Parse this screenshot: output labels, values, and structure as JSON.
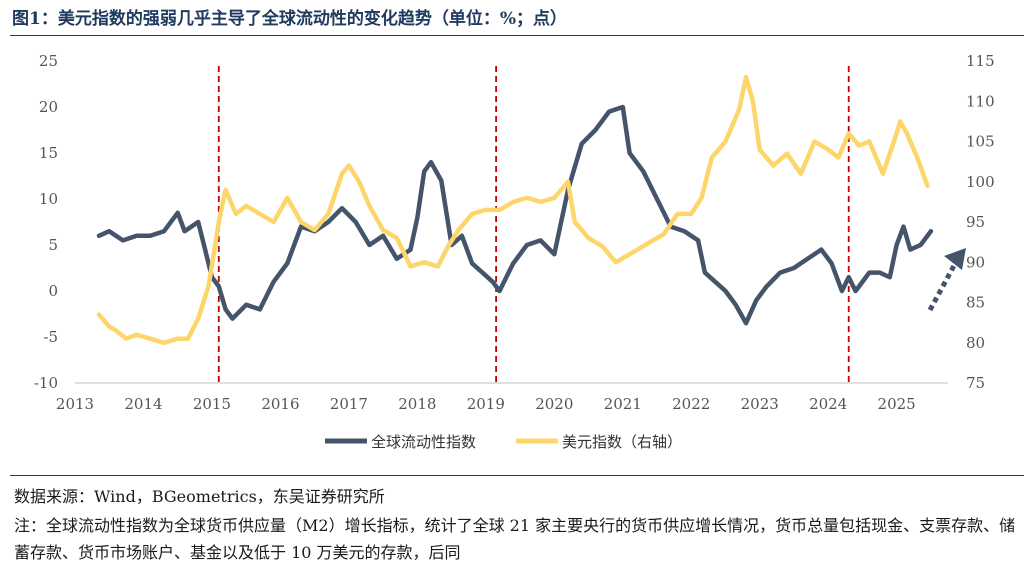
{
  "figure_title": "图1：美元指数的强弱几乎主导了全球流动性的变化趋势（单位：%；点）",
  "source": "数据来源：Wind，BGeometrics，东吴证券研究所",
  "note": "注：全球流动性指数为全球货币供应量（M2）增长指标，统计了全球 21 家主要央行的货币供应增长情况，货币总量包括现金、支票存款、储蓄存款、货币市场账户、基金以及低于 10 万美元的存款，后同",
  "chart_data": {
    "type": "line",
    "x_ticks": [
      "2013",
      "2014",
      "2015",
      "2016",
      "2017",
      "2018",
      "2019",
      "2020",
      "2021",
      "2022",
      "2023",
      "2024",
      "2025"
    ],
    "xlim": [
      2013.0,
      2025.75
    ],
    "left_axis": {
      "ylim": [
        -10,
        25
      ],
      "ticks": [
        "25",
        "20",
        "15",
        "10",
        "5",
        "0",
        "-5",
        "-10"
      ]
    },
    "right_axis": {
      "ylim": [
        75,
        115
      ],
      "ticks": [
        "115",
        "110",
        "105",
        "100",
        "95",
        "90",
        "85",
        "80",
        "75"
      ]
    },
    "legend_position": "bottom",
    "grid": false,
    "series": [
      {
        "name": "全球流动性指数",
        "axis": "left",
        "color": "#44546a",
        "x": [
          2013.35,
          2013.5,
          2013.7,
          2013.9,
          2014.1,
          2014.3,
          2014.5,
          2014.6,
          2014.8,
          2014.9,
          2015.0,
          2015.1,
          2015.2,
          2015.3,
          2015.5,
          2015.7,
          2015.9,
          2016.1,
          2016.3,
          2016.5,
          2016.7,
          2016.9,
          2017.1,
          2017.3,
          2017.5,
          2017.7,
          2017.9,
          2018.0,
          2018.1,
          2018.2,
          2018.35,
          2018.5,
          2018.65,
          2018.8,
          2018.95,
          2019.1,
          2019.2,
          2019.4,
          2019.6,
          2019.8,
          2020.0,
          2020.2,
          2020.4,
          2020.6,
          2020.8,
          2021.0,
          2021.1,
          2021.3,
          2021.5,
          2021.7,
          2021.9,
          2022.1,
          2022.2,
          2022.35,
          2022.5,
          2022.65,
          2022.8,
          2022.95,
          2023.1,
          2023.3,
          2023.5,
          2023.7,
          2023.9,
          2024.05,
          2024.2,
          2024.3,
          2024.4,
          2024.6,
          2024.75,
          2024.9,
          2025.0,
          2025.1,
          2025.2,
          2025.35,
          2025.5
        ],
        "values": [
          6,
          6.5,
          5.5,
          6,
          6,
          6.5,
          8.5,
          6.5,
          7.5,
          4.5,
          1.5,
          0.5,
          -2,
          -3,
          -1.5,
          -2,
          1,
          3,
          7,
          6.5,
          7.5,
          9,
          7.5,
          5,
          6,
          3.5,
          4.5,
          8,
          13,
          14,
          12,
          5,
          6,
          3,
          2,
          1,
          0,
          3,
          5,
          5.5,
          4,
          11,
          16,
          17.5,
          19.5,
          20,
          15,
          13,
          10,
          7,
          6.5,
          5.5,
          2,
          1,
          0,
          -1.5,
          -3.5,
          -1,
          0.5,
          2,
          2.5,
          3.5,
          4.5,
          3,
          0,
          1.5,
          0,
          2,
          2,
          1.5,
          5,
          7,
          4.5,
          5,
          6.5
        ]
      },
      {
        "name": "美元指数（右轴）",
        "axis": "right",
        "color": "#fdd66b",
        "x": [
          2013.35,
          2013.5,
          2013.6,
          2013.75,
          2013.9,
          2014.1,
          2014.3,
          2014.5,
          2014.65,
          2014.8,
          2014.95,
          2015.1,
          2015.2,
          2015.35,
          2015.5,
          2015.7,
          2015.9,
          2016.1,
          2016.3,
          2016.5,
          2016.7,
          2016.9,
          2017.0,
          2017.15,
          2017.3,
          2017.5,
          2017.7,
          2017.9,
          2018.1,
          2018.3,
          2018.45,
          2018.6,
          2018.8,
          2019.0,
          2019.2,
          2019.4,
          2019.6,
          2019.8,
          2020.0,
          2020.15,
          2020.2,
          2020.3,
          2020.5,
          2020.7,
          2020.9,
          2021.0,
          2021.2,
          2021.4,
          2021.6,
          2021.8,
          2022.0,
          2022.15,
          2022.3,
          2022.5,
          2022.7,
          2022.8,
          2022.9,
          2023.0,
          2023.2,
          2023.4,
          2023.6,
          2023.8,
          2024.0,
          2024.15,
          2024.3,
          2024.45,
          2024.6,
          2024.8,
          2025.0,
          2025.05,
          2025.15,
          2025.3,
          2025.45
        ],
        "values": [
          83.5,
          82,
          81.5,
          80.5,
          81,
          80.5,
          80,
          80.5,
          80.5,
          83,
          87,
          95,
          99,
          96,
          97,
          96,
          95,
          98,
          95,
          94,
          96,
          101,
          102,
          100,
          97,
          94,
          93,
          89.5,
          90,
          89.5,
          92,
          94,
          96,
          96.5,
          96.5,
          97.5,
          98,
          97.5,
          98,
          99.5,
          100,
          95,
          93,
          92,
          90,
          90.5,
          91.5,
          92.5,
          93.5,
          96,
          96,
          98,
          103,
          105,
          109,
          113,
          110,
          104,
          102,
          103.5,
          101,
          105,
          104,
          103,
          106,
          104.5,
          105,
          101,
          106,
          107.5,
          106,
          103,
          99.5
        ]
      }
    ],
    "markers": {
      "vertical_dashed_lines_x": [
        2015.1,
        2019.15,
        2024.3
      ],
      "color": "#c00000"
    }
  }
}
